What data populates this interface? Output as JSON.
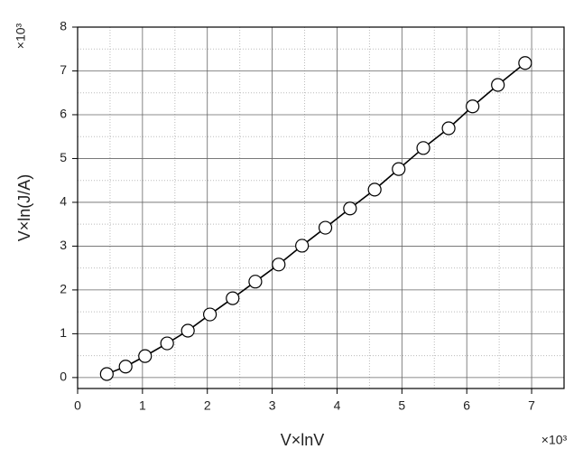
{
  "chart_data": {
    "type": "scatter",
    "x_label": "V×lnV",
    "y_label": "V×ln(J/A)",
    "x_multiplier": "×10³",
    "y_multiplier": "×10³",
    "xlim": [
      0,
      7.5
    ],
    "ylim": [
      -0.25,
      8
    ],
    "xticks": [
      0,
      1,
      2,
      3,
      4,
      5,
      6,
      7
    ],
    "yticks": [
      0,
      1,
      2,
      3,
      4,
      5,
      6,
      7,
      8
    ],
    "x_minor_ticks": [
      0.5,
      1.5,
      2.5,
      3.5,
      4.5,
      5.5,
      6.5
    ],
    "y_minor_ticks": [
      0.5,
      1.5,
      2.5,
      3.5,
      4.5,
      5.5,
      6.5,
      7.5
    ],
    "grid": true,
    "connect_points": true,
    "series": [
      {
        "color": "#000000",
        "x": [
          0.45,
          0.74,
          1.04,
          1.38,
          1.7,
          2.04,
          2.39,
          2.74,
          3.1,
          3.46,
          3.82,
          4.2,
          4.58,
          4.95,
          5.33,
          5.72,
          6.09,
          6.48,
          6.9
        ],
        "values": [
          0.08,
          0.25,
          0.49,
          0.78,
          1.07,
          1.44,
          1.81,
          2.19,
          2.58,
          3.01,
          3.42,
          3.86,
          4.29,
          4.76,
          5.24,
          5.69,
          6.19,
          6.68,
          7.18
        ]
      }
    ]
  }
}
